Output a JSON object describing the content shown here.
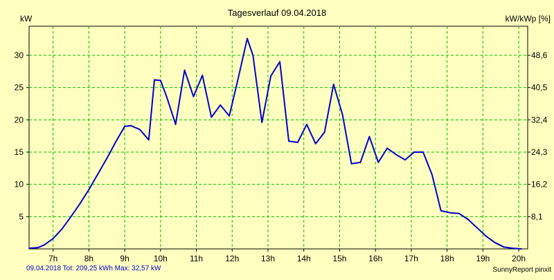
{
  "chart_data": {
    "type": "line",
    "title": "Tagesverlauf 09.04.2018",
    "ylabel_left": "kW",
    "ylabel_right": "kW/kWp [%]",
    "ylim": [
      0,
      34.5
    ],
    "yticks_left": [
      5,
      10,
      15,
      20,
      25,
      30
    ],
    "yticks_right": [
      "8,1",
      "16,2",
      "24,3",
      "32,4",
      "40,5",
      "48,6"
    ],
    "xlim": [
      6.33,
      20.25
    ],
    "xticks": [
      {
        "x": 7,
        "label": "7h"
      },
      {
        "x": 8,
        "label": "8h"
      },
      {
        "x": 9,
        "label": "9h"
      },
      {
        "x": 10,
        "label": "10h"
      },
      {
        "x": 11,
        "label": "11h"
      },
      {
        "x": 12,
        "label": "12h"
      },
      {
        "x": 13,
        "label": "13h"
      },
      {
        "x": 14,
        "label": "14h"
      },
      {
        "x": 15,
        "label": "15h"
      },
      {
        "x": 16,
        "label": "16h"
      },
      {
        "x": 17,
        "label": "17h"
      },
      {
        "x": 18,
        "label": "18h"
      },
      {
        "x": 19,
        "label": "19h"
      },
      {
        "x": 20,
        "label": "20h"
      }
    ],
    "grid": true,
    "line_color": "#0000cc",
    "grid_color": "#00c000",
    "background": "#ffffc0",
    "series": [
      {
        "x": [
          6.33,
          6.58,
          6.75,
          7.0,
          7.25,
          7.5,
          7.75,
          8.0,
          8.25,
          8.5,
          8.75,
          9.0,
          9.17,
          9.42,
          9.67,
          9.83,
          10.0,
          10.17,
          10.42,
          10.67,
          10.92,
          11.17,
          11.42,
          11.67,
          11.92,
          12.17,
          12.42,
          12.58,
          12.83,
          13.08,
          13.33,
          13.58,
          13.83,
          14.08,
          14.33,
          14.58,
          14.83,
          15.08,
          15.33,
          15.58,
          15.83,
          16.08,
          16.33,
          16.58,
          16.83,
          17.08,
          17.33,
          17.58,
          17.83,
          18.08,
          18.33,
          18.58,
          18.83,
          19.08,
          19.33,
          19.58,
          19.83,
          20.08
        ],
        "values": [
          0.1,
          0.2,
          0.6,
          1.6,
          3.1,
          5.0,
          7.0,
          9.2,
          11.6,
          14.0,
          16.6,
          19.0,
          19.1,
          18.5,
          16.9,
          26.2,
          26.1,
          23.6,
          19.3,
          27.7,
          23.6,
          26.9,
          20.4,
          22.3,
          20.6,
          26.5,
          32.6,
          30.0,
          19.6,
          26.8,
          29.0,
          16.7,
          16.5,
          19.3,
          16.3,
          18.1,
          25.5,
          20.8,
          13.2,
          13.4,
          17.4,
          13.4,
          15.6,
          14.6,
          13.8,
          15.0,
          15.0,
          11.5,
          5.9,
          5.6,
          5.5,
          4.6,
          3.3,
          2.0,
          1.0,
          0.3,
          0.1,
          0.0
        ]
      }
    ]
  },
  "footer": {
    "summary": "09.04.2018 Tot: 209,25 kWh Max: 32,57 kW",
    "brand": "SunnyReport pinxit"
  }
}
